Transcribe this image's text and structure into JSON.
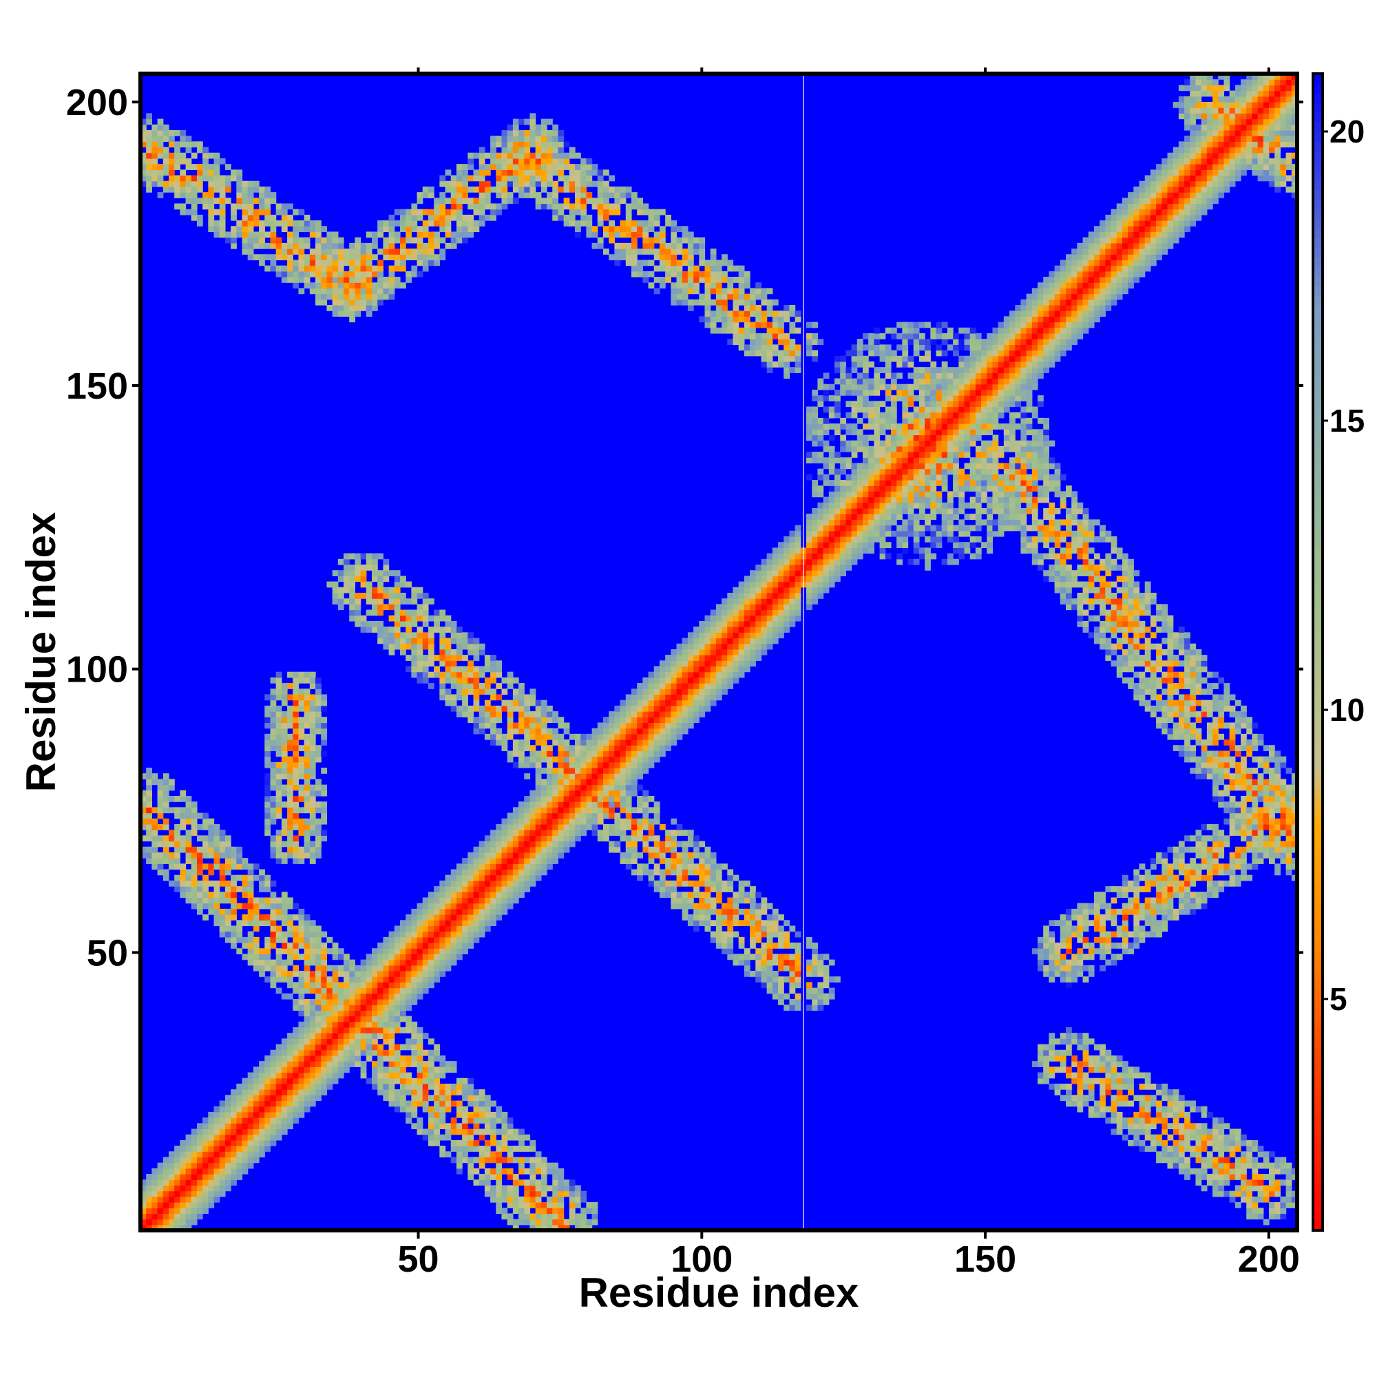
{
  "chart_data": {
    "type": "heatmap",
    "title": "",
    "xlabel": "Residue index",
    "ylabel": "Residue index",
    "xlim": [
      1,
      205
    ],
    "ylim": [
      1,
      205
    ],
    "x_ticks": [
      50,
      100,
      150,
      200
    ],
    "y_ticks": [
      50,
      100,
      150,
      200
    ],
    "x_tick_labels": [
      "50",
      "100",
      "150",
      "200"
    ],
    "y_tick_labels": [
      "50",
      "100",
      "150",
      "200"
    ],
    "n_residues": 205,
    "gap_column_residue": 118,
    "colorbar": {
      "range": [
        1,
        21
      ],
      "ticks": [
        5,
        10,
        15,
        20
      ],
      "tick_labels": [
        "5",
        "10",
        "15",
        "20"
      ],
      "colors": [
        {
          "value": 1,
          "color": "#ff0000"
        },
        {
          "value": 4,
          "color": "#ff4400"
        },
        {
          "value": 6,
          "color": "#ff8800"
        },
        {
          "value": 8,
          "color": "#ffaa00"
        },
        {
          "value": 9,
          "color": "#c9c08a"
        },
        {
          "value": 12,
          "color": "#9fbf8a"
        },
        {
          "value": 17,
          "color": "#7a9bc4"
        },
        {
          "value": 21,
          "color": "#0000ff"
        }
      ]
    },
    "background_color": "#0000ff",
    "features": [
      {
        "name": "main diagonal",
        "start": [
          1,
          1
        ],
        "end": [
          205,
          205
        ],
        "width": 6
      },
      {
        "name": "band",
        "start": [
          2,
          75
        ],
        "end": [
          75,
          2
        ],
        "width": 7
      },
      {
        "name": "band",
        "start": [
          2,
          192
        ],
        "end": [
          38,
          168
        ],
        "width": 6
      },
      {
        "name": "band",
        "start": [
          38,
          168
        ],
        "end": [
          70,
          192
        ],
        "width": 6
      },
      {
        "name": "band",
        "start": [
          70,
          190
        ],
        "end": [
          115,
          158
        ],
        "width": 6
      },
      {
        "name": "band",
        "start": [
          40,
          115
        ],
        "end": [
          118,
          45
        ],
        "width": 6
      },
      {
        "name": "band",
        "start": [
          28,
          95
        ],
        "end": [
          28,
          70
        ],
        "width": 5
      },
      {
        "name": "band",
        "start": [
          155,
          135
        ],
        "end": [
          205,
          70
        ],
        "width": 7
      },
      {
        "name": "band",
        "start": [
          165,
          30
        ],
        "end": [
          200,
          8
        ],
        "width": 6
      },
      {
        "name": "band",
        "start": [
          165,
          50
        ],
        "end": [
          205,
          75
        ],
        "width": 6
      },
      {
        "name": "band",
        "start": [
          190,
          200
        ],
        "end": [
          205,
          190
        ],
        "width": 6
      },
      {
        "name": "cluster",
        "center": [
          140,
          140
        ],
        "radius": 22
      }
    ]
  }
}
